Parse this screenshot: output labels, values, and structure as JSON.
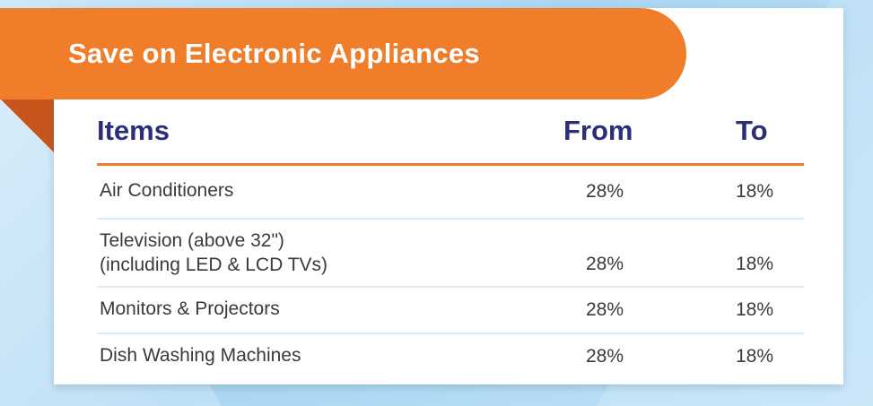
{
  "title": "Save on Electronic Appliances",
  "columns": {
    "items": "Items",
    "from": "From",
    "to": "To"
  },
  "rows": [
    {
      "item_lines": [
        "Air Conditioners"
      ],
      "from": "28%",
      "to": "18%"
    },
    {
      "item_lines": [
        "Television (above 32\")",
        "(including LED & LCD TVs)"
      ],
      "from": "28%",
      "to": "18%"
    },
    {
      "item_lines": [
        "Monitors & Projectors"
      ],
      "from": "28%",
      "to": "18%"
    },
    {
      "item_lines": [
        "Dish Washing Machines"
      ],
      "from": "28%",
      "to": "18%"
    }
  ],
  "colors": {
    "accent": "#ef7d2a",
    "heading": "#2a2f78",
    "divider": "#d6ecf8"
  }
}
